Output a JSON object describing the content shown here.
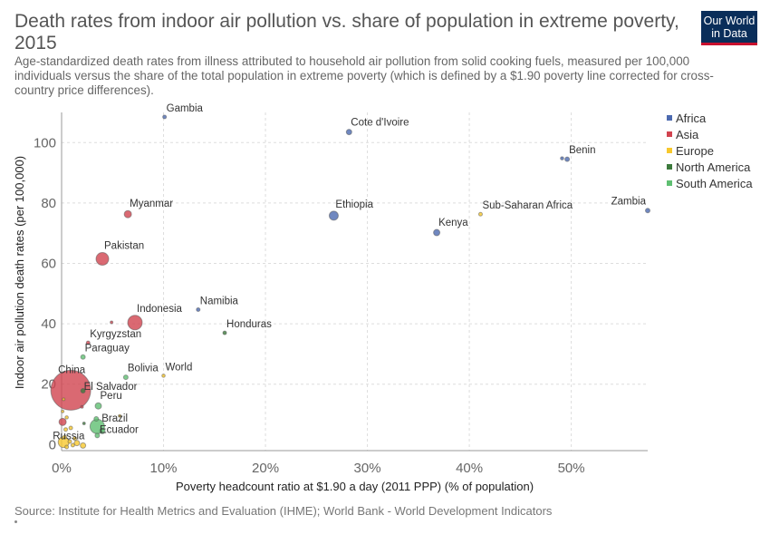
{
  "header": {
    "title": "Death rates from indoor air pollution vs. share of population in extreme poverty, 2015",
    "subtitle": "Age-standardized death rates from illness attributed to household air pollution from solid cooking fuels, measured per 100,000 individuals versus the share of the total population in extreme poverty (which is defined by a $1.90 poverty line corrected for cross-country price differences).",
    "logo_line1": "Our World",
    "logo_line2": "in Data"
  },
  "footer": {
    "source": "Source: Institute for Health Metrics and Evaluation (IHME); World Bank - World Development Indicators"
  },
  "colors": {
    "Africa": "#4c6ab0",
    "Asia": "#d1434f",
    "Europe": "#f7c82d",
    "North America": "#3c7a3c",
    "South America": "#5fbf72"
  },
  "chart_data": {
    "type": "scatter",
    "title": "Death rates from indoor air pollution vs. share of population in extreme poverty, 2015",
    "xlabel": "Poverty headcount ratio at $1.90 a day (2011 PPP) (% of population)",
    "ylabel": "Indoor air pollution death rates (per 100,000)",
    "xlim": [
      0,
      57.5
    ],
    "ylim": [
      -2,
      110
    ],
    "x_ticks": [
      0,
      10,
      20,
      30,
      40,
      50
    ],
    "x_tick_labels": [
      "0%",
      "10%",
      "20%",
      "30%",
      "40%",
      "50%"
    ],
    "y_ticks": [
      0,
      20,
      40,
      60,
      80,
      100
    ],
    "y_tick_labels": [
      "0",
      "20",
      "40",
      "60",
      "80",
      "100"
    ],
    "grid": true,
    "legend_position": "right",
    "legend": [
      "Africa",
      "Asia",
      "Europe",
      "North America",
      "South America"
    ],
    "points": [
      {
        "label": "Gambia",
        "x": 10.1,
        "y": 108.5,
        "r": 2,
        "region": "Africa"
      },
      {
        "label": "Cote d'Ivoire",
        "x": 28.2,
        "y": 103.5,
        "r": 3,
        "region": "Africa"
      },
      {
        "label": "Benin",
        "x": 49.6,
        "y": 94.5,
        "r": 2.5,
        "region": "Africa"
      },
      {
        "label": "",
        "x": 49.1,
        "y": 94.8,
        "r": 1.8,
        "region": "Africa"
      },
      {
        "label": "Zambia",
        "x": 57.5,
        "y": 77.5,
        "r": 2.5,
        "region": "Africa"
      },
      {
        "label": "Sub-Saharan Africa",
        "x": 41.1,
        "y": 76.3,
        "r": 2,
        "region": "Europe"
      },
      {
        "label": "Myanmar",
        "x": 6.5,
        "y": 76.3,
        "r": 4,
        "region": "Asia"
      },
      {
        "label": "Ethiopia",
        "x": 26.7,
        "y": 75.8,
        "r": 5,
        "region": "Africa"
      },
      {
        "label": "Kenya",
        "x": 36.8,
        "y": 70.2,
        "r": 3.5,
        "region": "Africa"
      },
      {
        "label": "Pakistan",
        "x": 4.0,
        "y": 61.5,
        "r": 7,
        "region": "Asia"
      },
      {
        "label": "Namibia",
        "x": 13.4,
        "y": 44.7,
        "r": 2,
        "region": "Africa"
      },
      {
        "label": "",
        "x": 4.9,
        "y": 40.5,
        "r": 1.5,
        "region": "Asia"
      },
      {
        "label": "Indonesia",
        "x": 7.2,
        "y": 40.4,
        "r": 8,
        "region": "Asia"
      },
      {
        "label": "Honduras",
        "x": 16.0,
        "y": 37.0,
        "r": 2,
        "region": "North America"
      },
      {
        "label": "Kyrgyzstan",
        "x": 2.6,
        "y": 33.7,
        "r": 2,
        "region": "Asia"
      },
      {
        "label": "Paraguay",
        "x": 2.1,
        "y": 29.0,
        "r": 2.5,
        "region": "South America"
      },
      {
        "label": "World",
        "x": 10.0,
        "y": 22.8,
        "r": 1.8,
        "region": "Europe"
      },
      {
        "label": "Bolivia",
        "x": 6.3,
        "y": 22.3,
        "r": 2.5,
        "region": "South America"
      },
      {
        "label": "China",
        "x": 0.9,
        "y": 18.0,
        "r": 22,
        "region": "Asia"
      },
      {
        "label": "El Salvador",
        "x": 2.1,
        "y": 17.8,
        "r": 2.5,
        "region": "North America"
      },
      {
        "label": "",
        "x": 0.2,
        "y": 15.0,
        "r": 1.5,
        "region": "Europe"
      },
      {
        "label": "Peru",
        "x": 3.6,
        "y": 12.8,
        "r": 3.5,
        "region": "South America"
      },
      {
        "label": "",
        "x": 2.0,
        "y": 12.5,
        "r": 1.5,
        "region": "Asia"
      },
      {
        "label": "",
        "x": 0.1,
        "y": 11.0,
        "r": 1.5,
        "region": "Europe"
      },
      {
        "label": "",
        "x": 5.7,
        "y": 9.5,
        "r": 1.5,
        "region": "Europe"
      },
      {
        "label": "",
        "x": 0.5,
        "y": 9.0,
        "r": 1.8,
        "region": "Europe"
      },
      {
        "label": "Brazil",
        "x": 3.4,
        "y": 8.5,
        "r": 2.5,
        "region": "South America"
      },
      {
        "label": "",
        "x": 0.1,
        "y": 7.5,
        "r": 4,
        "region": "Asia"
      },
      {
        "label": "",
        "x": 2.2,
        "y": 7.0,
        "r": 1.5,
        "region": "North America"
      },
      {
        "label": "",
        "x": 3.5,
        "y": 6.0,
        "r": 8,
        "region": "South America"
      },
      {
        "label": "Ecuador",
        "x": 4.0,
        "y": 4.5,
        "r": 3,
        "region": "South America"
      },
      {
        "label": "",
        "x": 3.5,
        "y": 3.0,
        "r": 2.5,
        "region": "South America"
      },
      {
        "label": "",
        "x": 0.4,
        "y": 5.0,
        "r": 2,
        "region": "Europe"
      },
      {
        "label": "",
        "x": 0.9,
        "y": 5.5,
        "r": 2,
        "region": "Europe"
      },
      {
        "label": "",
        "x": 0.3,
        "y": 2.5,
        "r": 2,
        "region": "Europe"
      },
      {
        "label": "",
        "x": 1.3,
        "y": 2.0,
        "r": 2,
        "region": "Europe"
      },
      {
        "label": "",
        "x": 0.8,
        "y": 1.0,
        "r": 2,
        "region": "Europe"
      },
      {
        "label": "Russia",
        "x": 0.2,
        "y": 0.8,
        "r": 6,
        "region": "Europe"
      },
      {
        "label": "",
        "x": 1.5,
        "y": 0.5,
        "r": 3,
        "region": "Europe"
      },
      {
        "label": "",
        "x": 2.1,
        "y": -0.3,
        "r": 3,
        "region": "Europe"
      },
      {
        "label": "",
        "x": 0.5,
        "y": -0.8,
        "r": 2,
        "region": "Europe"
      },
      {
        "label": "",
        "x": 1.1,
        "y": -0.2,
        "r": 2,
        "region": "Europe"
      }
    ]
  }
}
